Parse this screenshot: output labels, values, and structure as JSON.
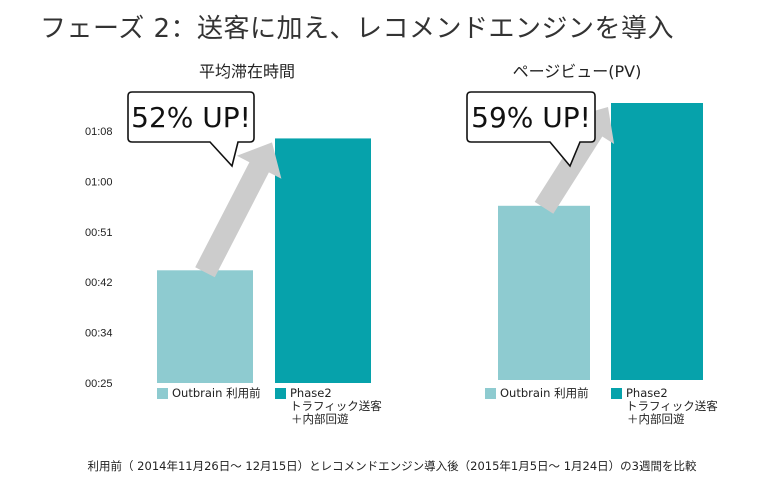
{
  "page": {
    "title": "フェーズ 2：送客に加え、レコメンドエンジンを導入",
    "footnote": "利用前（ 2014年11月26日～ 12月15日）とレコメンドエンジン導入後（2015年1月5日～ 1月24日）の3週間を比較"
  },
  "colors": {
    "outbrain": "#8ecbd0",
    "phase2": "#06a2ab",
    "arrow": "#cccccc",
    "callout_border": "#111111"
  },
  "chart_data": [
    {
      "type": "bar",
      "title": "平均滞在時間",
      "categories": [
        "Outbrain 利用前",
        "Phase2 トラフィック送客＋内部回遊"
      ],
      "series": [
        {
          "name": "平均滞在時間 (分:秒)",
          "values": [
            45.0,
            68.4
          ]
        }
      ],
      "y_ticks": [
        "00:25",
        "00:34",
        "00:42",
        "00:51",
        "01:00",
        "01:08"
      ],
      "ylim": [
        25,
        68
      ],
      "callout": "52% UP!",
      "legend": [
        {
          "key": "outbrain",
          "lines": [
            "Outbrain 利用前"
          ]
        },
        {
          "key": "phase2",
          "lines": [
            "Phase2",
            "トラフィック送客",
            "＋内部回遊"
          ]
        }
      ]
    },
    {
      "type": "bar",
      "title": "ページビュー(PV)",
      "categories": [
        "Outbrain 利用前",
        "Phase2 トラフィック送客＋内部回遊"
      ],
      "series": [
        {
          "name": "ページビュー(PV)",
          "values": [
            100,
            159
          ]
        }
      ],
      "y_ticks": [],
      "callout": "59% UP!",
      "legend": [
        {
          "key": "outbrain",
          "lines": [
            "Outbrain 利用前"
          ]
        },
        {
          "key": "phase2",
          "lines": [
            "Phase2",
            "トラフィック送客",
            "＋内部回遊"
          ]
        }
      ]
    }
  ]
}
